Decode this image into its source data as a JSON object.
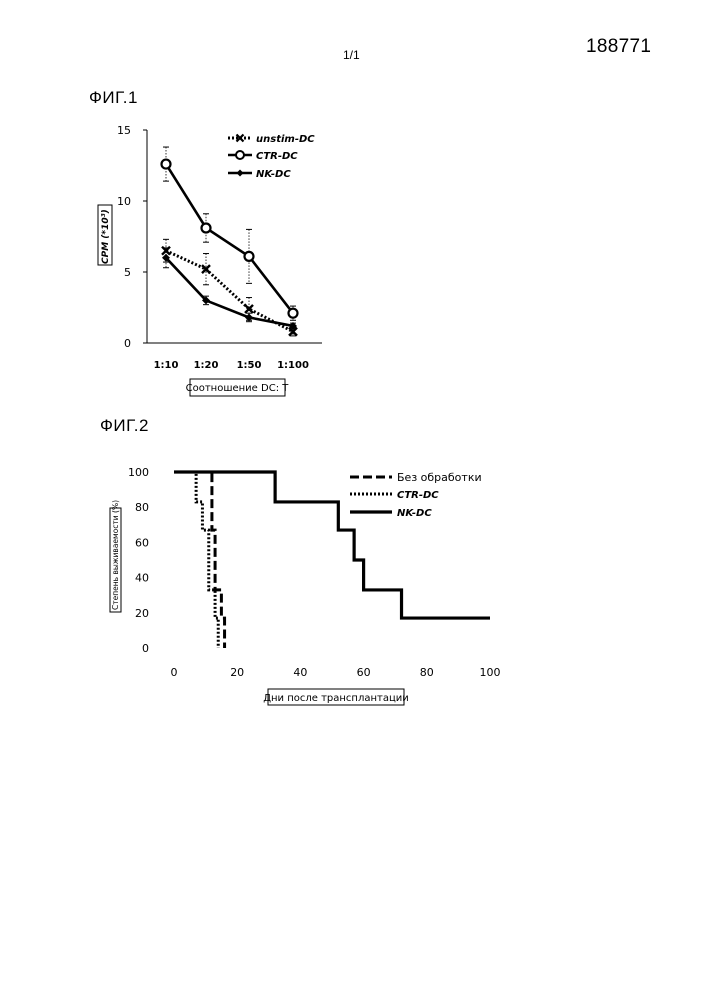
{
  "header": {
    "page_number": "188771",
    "page_count": "1/1"
  },
  "figures": [
    {
      "label": "ФИГ.1"
    },
    {
      "label": "ФИГ.2"
    }
  ],
  "chart_data": [
    {
      "type": "line",
      "title": "",
      "xlabel": "Соотношение DC: T",
      "ylabel": "CPM (*10³)",
      "categories": [
        "1:10",
        "1:20",
        "1:50",
        "1:100"
      ],
      "ylim": [
        0,
        15
      ],
      "yticks": [
        0,
        5,
        10,
        15
      ],
      "legend_position": "top-right",
      "series": [
        {
          "name": "unstim-DC",
          "values": [
            6.5,
            5.2,
            2.4,
            0.8
          ],
          "errors": [
            0.8,
            1.1,
            0.8,
            0.3
          ],
          "style": "dotted",
          "marker": "x",
          "color": "#000000"
        },
        {
          "name": "CTR-DC",
          "values": [
            12.6,
            8.1,
            6.1,
            2.1
          ],
          "errors": [
            1.2,
            1.0,
            1.9,
            0.5
          ],
          "style": "solid",
          "marker": "open-circle",
          "color": "#000000"
        },
        {
          "name": "NK-DC",
          "values": [
            6.0,
            3.0,
            1.8,
            1.2
          ],
          "errors": [
            0.7,
            0.3,
            0.3,
            0.2
          ],
          "style": "solid",
          "marker": "filled-diamond",
          "color": "#000000"
        }
      ]
    },
    {
      "type": "line",
      "title": "",
      "xlabel": "Дни после трансплантации",
      "ylabel": "Степень выживаемости (%)",
      "xlim": [
        0,
        100
      ],
      "xticks": [
        0,
        20,
        40,
        60,
        80,
        100
      ],
      "ylim": [
        0,
        100
      ],
      "yticks": [
        0,
        20,
        40,
        60,
        80,
        100
      ],
      "legend_position": "top-right",
      "step": true,
      "series": [
        {
          "name": "Без обработки",
          "style": "dashed",
          "color": "#000000",
          "x": [
            0,
            12,
            12,
            13,
            13,
            15,
            15,
            16,
            16
          ],
          "y": [
            100,
            100,
            67,
            67,
            33,
            33,
            17,
            17,
            0
          ]
        },
        {
          "name": "CTR-DC",
          "style": "dotted",
          "color": "#000000",
          "x": [
            0,
            7,
            7,
            9,
            9,
            11,
            11,
            13,
            13,
            14,
            14
          ],
          "y": [
            100,
            100,
            83,
            83,
            67,
            67,
            33,
            33,
            17,
            17,
            0
          ]
        },
        {
          "name": "NK-DC",
          "style": "solid",
          "color": "#000000",
          "x": [
            0,
            32,
            32,
            52,
            52,
            57,
            57,
            60,
            60,
            72,
            72,
            100
          ],
          "y": [
            100,
            100,
            83,
            83,
            67,
            67,
            50,
            50,
            33,
            33,
            17,
            17
          ]
        }
      ]
    }
  ]
}
